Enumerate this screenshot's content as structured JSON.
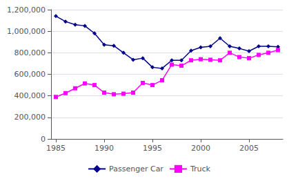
{
  "chart_data": {
    "type": "line",
    "x": [
      1985,
      1986,
      1987,
      1988,
      1989,
      1990,
      1991,
      1992,
      1993,
      1994,
      1995,
      1996,
      1997,
      1998,
      1999,
      2000,
      2001,
      2002,
      2003,
      2004,
      2005,
      2006,
      2007,
      2008
    ],
    "series": [
      {
        "name": "Passenger Car",
        "color": "#00008B",
        "marker": "diamond",
        "values": [
          1140000,
          1090000,
          1060000,
          1050000,
          980000,
          875000,
          865000,
          800000,
          735000,
          750000,
          665000,
          655000,
          730000,
          730000,
          820000,
          850000,
          860000,
          935000,
          860000,
          840000,
          815000,
          860000,
          860000,
          855000
        ]
      },
      {
        "name": "Truck",
        "color": "#FF00FF",
        "marker": "square",
        "values": [
          390000,
          425000,
          470000,
          515000,
          500000,
          430000,
          415000,
          420000,
          430000,
          520000,
          500000,
          545000,
          690000,
          680000,
          730000,
          740000,
          735000,
          730000,
          800000,
          760000,
          750000,
          780000,
          800000,
          825000
        ]
      }
    ],
    "xlim": [
      1984.5,
      2008.5
    ],
    "xticks": [
      1985,
      1990,
      1995,
      2000,
      2005
    ],
    "ylim": [
      0,
      1200000
    ],
    "yticks": [
      0,
      {
        "value": 200000,
        "label": "200,000"
      },
      {
        "value": 400000,
        "label": "400,000"
      },
      {
        "value": 600000,
        "label": "600,000"
      },
      {
        "value": 800000,
        "label": "800,000"
      },
      {
        "value": 1000000,
        "label": "1,000,000"
      },
      {
        "value": 1200000,
        "label": "1,200,000"
      }
    ],
    "grid": true,
    "legend": "bottom"
  }
}
